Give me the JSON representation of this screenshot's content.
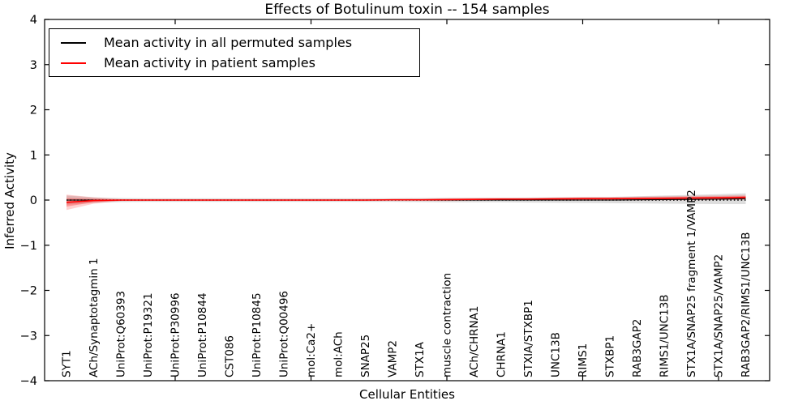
{
  "title": "Effects of Botulinum toxin -- 154 samples",
  "chart_data": {
    "type": "line",
    "title": "Effects of Botulinum toxin -- 154 samples",
    "xlabel": "Cellular Entities",
    "ylabel": "Inferred Activity",
    "ylim": [
      -4,
      4
    ],
    "yticks": [
      4,
      3,
      2,
      1,
      0,
      -1,
      -2,
      -3,
      -4
    ],
    "grid": false,
    "legend_position": "upper left",
    "zero_line": {
      "style": "dotted",
      "color": "#000000",
      "y": 0
    },
    "categories": [
      "SYT1",
      "ACh/Synaptotagmin 1",
      "UniProt:Q60393",
      "UniProt:P19321",
      "UniProt:P30996",
      "UniProt:P10844",
      "CST086",
      "UniProt:P10845",
      "UniProt:Q00496",
      "mol:Ca2+",
      "mol:ACh",
      "SNAP25",
      "VAMP2",
      "STX1A",
      "muscle contraction",
      "ACh/CHRNA1",
      "CHRNA1",
      "STXIA/STXBP1",
      "UNC13B",
      "RIMS1",
      "STXBP1",
      "RAB3GAP2",
      "RIMS1/UNC13B",
      "STX1A/SNAP25 fragment 1/VAMP2",
      "STX1A/SNAP25/VAMP2",
      "RAB3GAP2/RIMS1/UNC13B"
    ],
    "series": [
      {
        "name": "Mean activity in all permuted samples",
        "color": "#000000",
        "style": "solid",
        "values": [
          0,
          0,
          0,
          0,
          0,
          0,
          0,
          0,
          0,
          0,
          0,
          0,
          0,
          0,
          0,
          0,
          0,
          0,
          0,
          0,
          0,
          0.005,
          0.01,
          0.015,
          0.02,
          0.03
        ],
        "band_halfwidth": [
          0.1,
          0.06,
          0.045,
          0.04,
          0.04,
          0.04,
          0.04,
          0.04,
          0.04,
          0.04,
          0.04,
          0.04,
          0.04,
          0.045,
          0.05,
          0.05,
          0.05,
          0.055,
          0.06,
          0.065,
          0.07,
          0.08,
          0.09,
          0.1,
          0.11,
          0.12
        ],
        "band_color": "#bbbbbb"
      },
      {
        "name": "Mean activity in patient samples",
        "color": "#ff0000",
        "style": "solid",
        "values": [
          -0.05,
          -0.01,
          0,
          0,
          0,
          0,
          0,
          0,
          0,
          0,
          0,
          0,
          0.005,
          0.005,
          0.01,
          0.015,
          0.02,
          0.02,
          0.025,
          0.03,
          0.03,
          0.035,
          0.04,
          0.045,
          0.05,
          0.06
        ],
        "band_halfwidth": [
          0.17,
          0.07,
          0.02,
          0.012,
          0.012,
          0.012,
          0.012,
          0.012,
          0.012,
          0.012,
          0.012,
          0.012,
          0.015,
          0.02,
          0.03,
          0.03,
          0.03,
          0.03,
          0.032,
          0.035,
          0.035,
          0.04,
          0.042,
          0.05,
          0.05,
          0.055
        ],
        "band_color": "#ff0000"
      }
    ]
  }
}
